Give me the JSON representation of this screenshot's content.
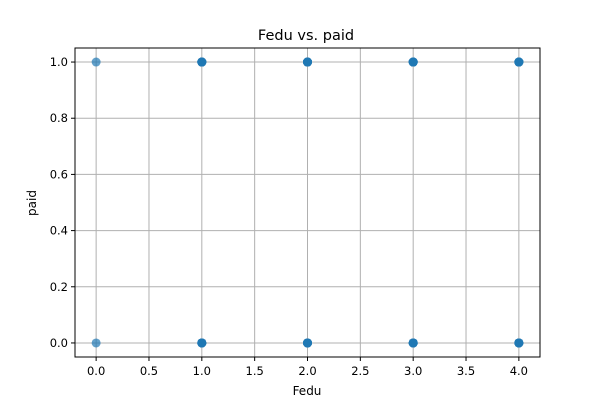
{
  "chart_data": {
    "type": "scatter",
    "title": "Fedu vs. paid",
    "xlabel": "Fedu",
    "ylabel": "paid",
    "xlim": [
      -0.2,
      4.2
    ],
    "ylim": [
      -0.05,
      1.05
    ],
    "xticks": [
      0.0,
      0.5,
      1.0,
      1.5,
      2.0,
      2.5,
      3.0,
      3.5,
      4.0
    ],
    "xtick_labels": [
      "0.0",
      "0.5",
      "1.0",
      "1.5",
      "2.0",
      "2.5",
      "3.0",
      "3.5",
      "4.0"
    ],
    "yticks": [
      0.0,
      0.2,
      0.4,
      0.6,
      0.8,
      1.0
    ],
    "ytick_labels": [
      "0.0",
      "0.2",
      "0.4",
      "0.6",
      "0.8",
      "1.0"
    ],
    "grid": true,
    "legend": "none",
    "marker_color": "#1f77b4",
    "points": [
      {
        "x": 0,
        "y": 1,
        "count": 1
      },
      {
        "x": 0,
        "y": 0,
        "count": 1
      },
      {
        "x": 1,
        "y": 1,
        "count": 8
      },
      {
        "x": 1,
        "y": 0,
        "count": 8
      },
      {
        "x": 2,
        "y": 1,
        "count": 8
      },
      {
        "x": 2,
        "y": 0,
        "count": 8
      },
      {
        "x": 3,
        "y": 1,
        "count": 8
      },
      {
        "x": 3,
        "y": 0,
        "count": 8
      },
      {
        "x": 4,
        "y": 1,
        "count": 8
      },
      {
        "x": 4,
        "y": 0,
        "count": 8
      }
    ]
  }
}
